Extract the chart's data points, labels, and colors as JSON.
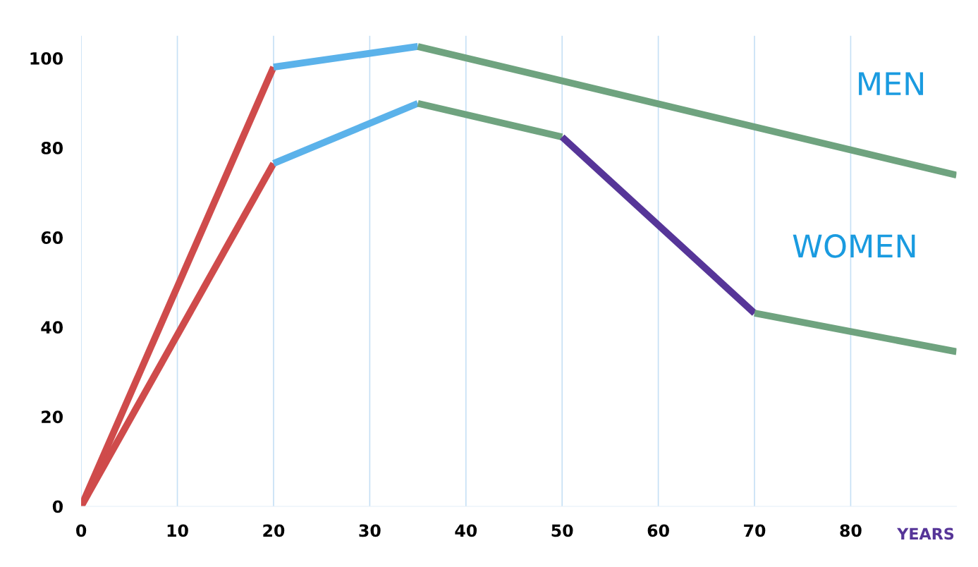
{
  "chart_data": {
    "type": "line",
    "xlabel": "YEARS",
    "xlim": [
      0,
      91
    ],
    "ylim": [
      0,
      105
    ],
    "xticks": [
      0,
      10,
      20,
      30,
      40,
      50,
      60,
      70,
      80
    ],
    "yticks": [
      0,
      20,
      40,
      60,
      80,
      100
    ],
    "grid": "x",
    "legend": false,
    "line_style": "solid",
    "marker": "none",
    "series": [
      {
        "color": "#cf4b4b",
        "x": [
          0,
          20
        ],
        "values": [
          0,
          98
        ]
      },
      {
        "color": "#5bb2ea",
        "x": [
          20,
          35
        ],
        "values": [
          98,
          102.6
        ]
      },
      {
        "color": "#6fa37f",
        "x": [
          35,
          91
        ],
        "values": [
          102.6,
          73.9
        ]
      },
      {
        "color": "#cf4b4b",
        "x": [
          0,
          20
        ],
        "values": [
          0,
          76.5
        ]
      },
      {
        "color": "#5bb2ea",
        "x": [
          20,
          35
        ],
        "values": [
          76.5,
          89.9
        ]
      },
      {
        "color": "#6fa37f",
        "x": [
          35,
          50
        ],
        "values": [
          89.9,
          82.4
        ]
      },
      {
        "color": "#563598",
        "x": [
          50,
          70
        ],
        "values": [
          82.4,
          43.1
        ]
      },
      {
        "color": "#6fa37f",
        "x": [
          70,
          91
        ],
        "values": [
          43.1,
          34.5
        ]
      }
    ],
    "annotations": [
      "MEN",
      "WOMEN"
    ]
  }
}
